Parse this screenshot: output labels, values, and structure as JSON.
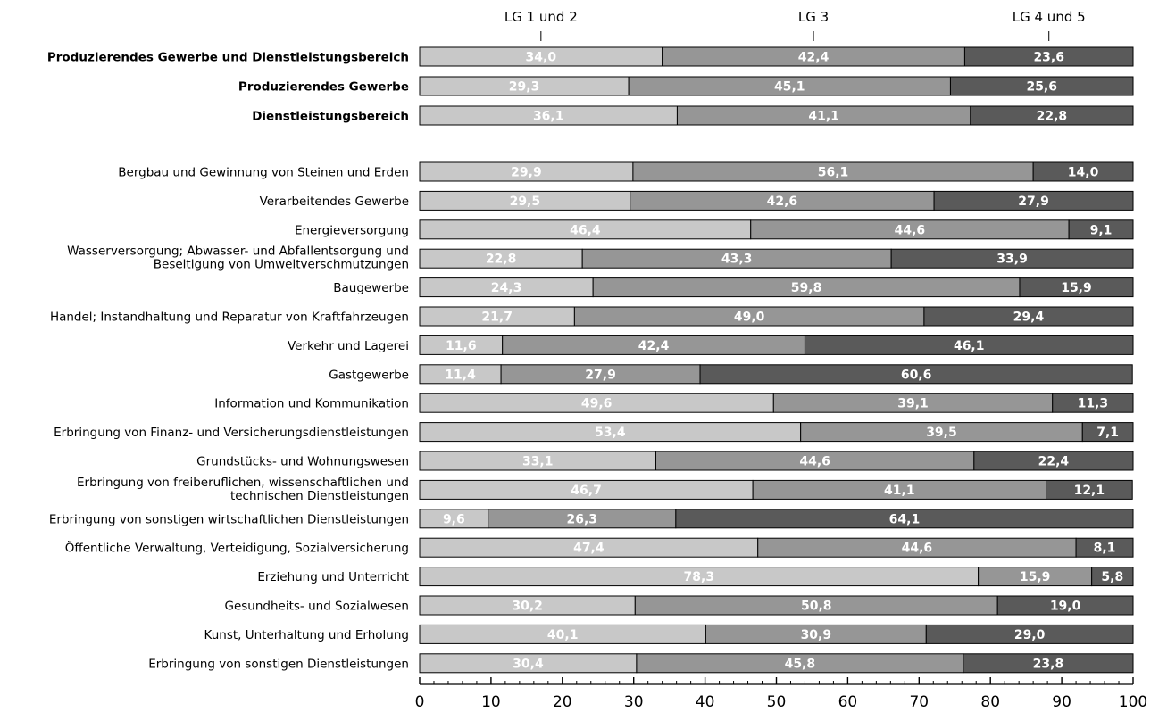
{
  "chart_data": {
    "type": "bar",
    "orientation": "horizontal",
    "stacked": true,
    "xlim": [
      0,
      100
    ],
    "x_ticks": [
      0,
      10,
      20,
      30,
      40,
      50,
      60,
      70,
      80,
      90,
      100
    ],
    "legend_position": "top",
    "series": [
      {
        "name": "LG 1 und 2",
        "color": "#c8c8c8"
      },
      {
        "name": "LG 3",
        "color": "#969696"
      },
      {
        "name": "LG 4 und 5",
        "color": "#5a5a5a"
      }
    ],
    "rows": [
      {
        "category": "Produzierendes Gewerbe und Dienstleistungsbereich",
        "bold": true,
        "values": [
          34.0,
          42.4,
          23.6
        ],
        "labels": [
          "34,0",
          "42,4",
          "23,6"
        ]
      },
      {
        "category": "Produzierendes Gewerbe",
        "bold": true,
        "values": [
          29.3,
          45.1,
          25.6
        ],
        "labels": [
          "29,3",
          "45,1",
          "25,6"
        ]
      },
      {
        "category": "Dienstleistungsbereich",
        "bold": true,
        "values": [
          36.1,
          41.1,
          22.8
        ],
        "labels": [
          "36,1",
          "41,1",
          "22,8"
        ]
      },
      {
        "category": "Bergbau und Gewinnung von Steinen und Erden",
        "bold": false,
        "values": [
          29.9,
          56.1,
          14.0
        ],
        "labels": [
          "29,9",
          "56,1",
          "14,0"
        ]
      },
      {
        "category": "Verarbeitendes Gewerbe",
        "bold": false,
        "values": [
          29.5,
          42.6,
          27.9
        ],
        "labels": [
          "29,5",
          "42,6",
          "27,9"
        ]
      },
      {
        "category": "Energieversorgung",
        "bold": false,
        "values": [
          46.4,
          44.6,
          9.1
        ],
        "labels": [
          "46,4",
          "44,6",
          "9,1"
        ]
      },
      {
        "category": "Wasserversorgung; Abwasser- und Abfallentsorgung und Beseitigung von Umweltverschmutzungen",
        "lines": [
          "Wasserversorgung; Abwasser- und Abfallentsorgung und",
          "Beseitigung von Umweltverschmutzungen"
        ],
        "bold": false,
        "values": [
          22.8,
          43.3,
          33.9
        ],
        "labels": [
          "22,8",
          "43,3",
          "33,9"
        ]
      },
      {
        "category": "Baugewerbe",
        "bold": false,
        "values": [
          24.3,
          59.8,
          15.9
        ],
        "labels": [
          "24,3",
          "59,8",
          "15,9"
        ]
      },
      {
        "category": "Handel; Instandhaltung und Reparatur von Kraftfahrzeugen",
        "bold": false,
        "values": [
          21.7,
          49.0,
          29.4
        ],
        "labels": [
          "21,7",
          "49,0",
          "29,4"
        ]
      },
      {
        "category": "Verkehr und Lagerei",
        "bold": false,
        "values": [
          11.6,
          42.4,
          46.1
        ],
        "labels": [
          "11,6",
          "42,4",
          "46,1"
        ]
      },
      {
        "category": "Gastgewerbe",
        "bold": false,
        "values": [
          11.4,
          27.9,
          60.6
        ],
        "labels": [
          "11,4",
          "27,9",
          "60,6"
        ]
      },
      {
        "category": "Information und Kommunikation",
        "bold": false,
        "values": [
          49.6,
          39.1,
          11.3
        ],
        "labels": [
          "49,6",
          "39,1",
          "11,3"
        ]
      },
      {
        "category": "Erbringung von Finanz- und Versicherungsdienstleistungen",
        "bold": false,
        "values": [
          53.4,
          39.5,
          7.1
        ],
        "labels": [
          "53,4",
          "39,5",
          "7,1"
        ]
      },
      {
        "category": "Grundstücks- und Wohnungswesen",
        "bold": false,
        "values": [
          33.1,
          44.6,
          22.4
        ],
        "labels": [
          "33,1",
          "44,6",
          "22,4"
        ]
      },
      {
        "category": "Erbringung von freiberuflichen, wissenschaftlichen und technischen Dienstleistungen",
        "lines": [
          "Erbringung von freiberuflichen, wissenschaftlichen und",
          "technischen Dienstleistungen"
        ],
        "bold": false,
        "values": [
          46.7,
          41.1,
          12.1
        ],
        "labels": [
          "46,7",
          "41,1",
          "12,1"
        ]
      },
      {
        "category": "Erbringung von sonstigen wirtschaftlichen Dienstleistungen",
        "bold": false,
        "values": [
          9.6,
          26.3,
          64.1
        ],
        "labels": [
          "9,6",
          "26,3",
          "64,1"
        ]
      },
      {
        "category": "Öffentliche Verwaltung, Verteidigung, Sozialversicherung",
        "bold": false,
        "values": [
          47.4,
          44.6,
          8.1
        ],
        "labels": [
          "47,4",
          "44,6",
          "8,1"
        ]
      },
      {
        "category": "Erziehung und Unterricht",
        "bold": false,
        "values": [
          78.3,
          15.9,
          5.8
        ],
        "labels": [
          "78,3",
          "15,9",
          "5,8"
        ]
      },
      {
        "category": "Gesundheits- und Sozialwesen",
        "bold": false,
        "values": [
          30.2,
          50.8,
          19.0
        ],
        "labels": [
          "30,2",
          "50,8",
          "19,0"
        ]
      },
      {
        "category": "Kunst, Unterhaltung und Erholung",
        "bold": false,
        "values": [
          40.1,
          30.9,
          29.0
        ],
        "labels": [
          "40,1",
          "30,9",
          "29,0"
        ]
      },
      {
        "category": "Erbringung von sonstigen Dienstleistungen",
        "bold": false,
        "values": [
          30.4,
          45.8,
          23.8
        ],
        "labels": [
          "30,4",
          "45,8",
          "23,8"
        ]
      }
    ]
  }
}
